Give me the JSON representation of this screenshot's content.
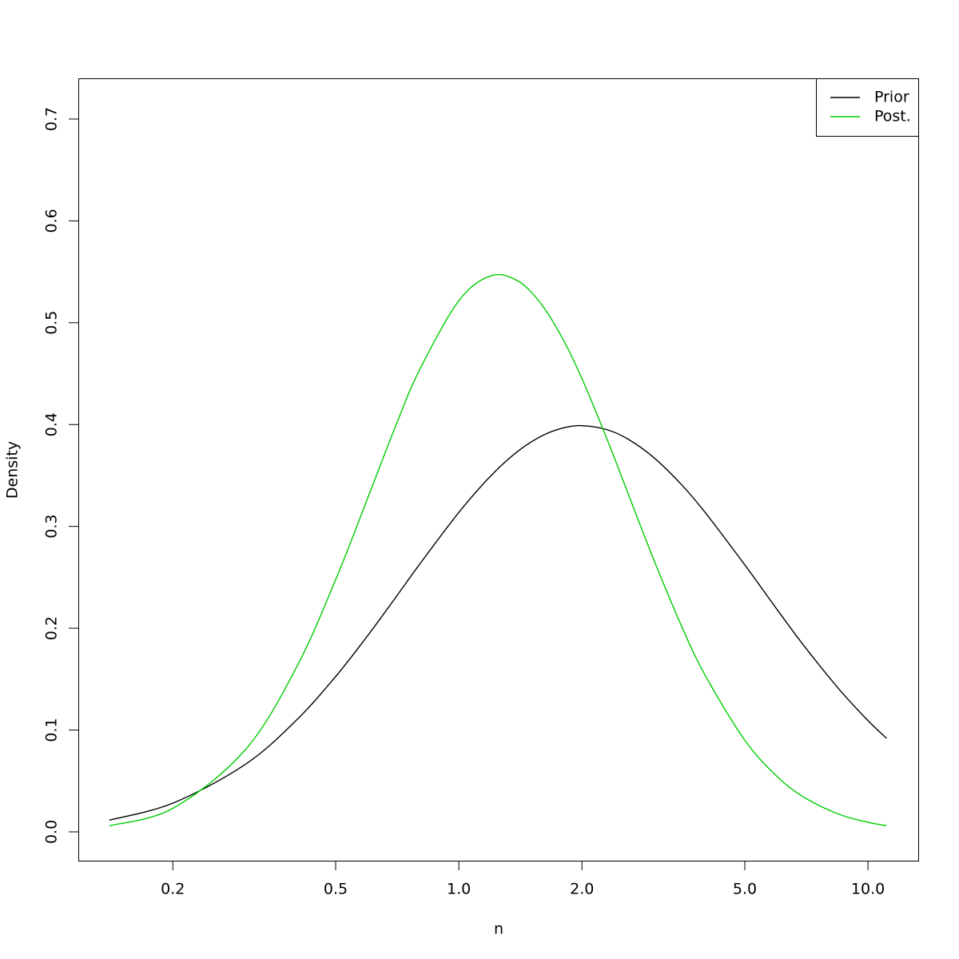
{
  "chart_data": {
    "type": "line",
    "xlabel": "n",
    "ylabel": "Density",
    "xscale": "log",
    "x": [
      0.14,
      0.2,
      0.3,
      0.4,
      0.5,
      0.6,
      0.7,
      0.8,
      1.0,
      1.2,
      1.4,
      1.6,
      1.8,
      2.0,
      2.3,
      2.6,
      3.0,
      3.5,
      4.0,
      5.0,
      6.0,
      7.0,
      8.5,
      10.0,
      11.1
    ],
    "series": [
      {
        "name": "Prior",
        "color": "#000000",
        "values": [
          0.0116,
          0.0282,
          0.066,
          0.1093,
          0.1526,
          0.1932,
          0.2299,
          0.2622,
          0.3137,
          0.3501,
          0.3743,
          0.3891,
          0.3967,
          0.3989,
          0.395,
          0.3854,
          0.3674,
          0.3411,
          0.3137,
          0.2622,
          0.2182,
          0.182,
          0.1401,
          0.1093,
          0.0919
        ]
      },
      {
        "name": "Post.",
        "color": "#00cd00",
        "values": [
          0.006,
          0.0231,
          0.0801,
          0.1607,
          0.2476,
          0.3287,
          0.398,
          0.4529,
          0.5216,
          0.5461,
          0.5406,
          0.5169,
          0.4832,
          0.445,
          0.3862,
          0.3309,
          0.2667,
          0.2024,
          0.1538,
          0.09,
          0.0543,
          0.0337,
          0.0173,
          0.0094,
          0.0062
        ]
      }
    ],
    "xlim": [
      0.1175,
      13.27
    ],
    "xticks": [
      0.2,
      0.5,
      {
        "value": 1,
        "label": "1.0"
      },
      {
        "value": 2,
        "label": "2.0"
      },
      {
        "value": 5,
        "label": "5.0"
      },
      {
        "value": 10,
        "label": "10.0"
      }
    ],
    "ylim": [
      -0.0283,
      0.74
    ],
    "yticks": [
      {
        "value": 0,
        "label": "0.0"
      },
      0.1,
      0.2,
      0.3,
      0.4,
      0.5,
      0.6,
      0.7
    ],
    "legend": "top-right"
  }
}
